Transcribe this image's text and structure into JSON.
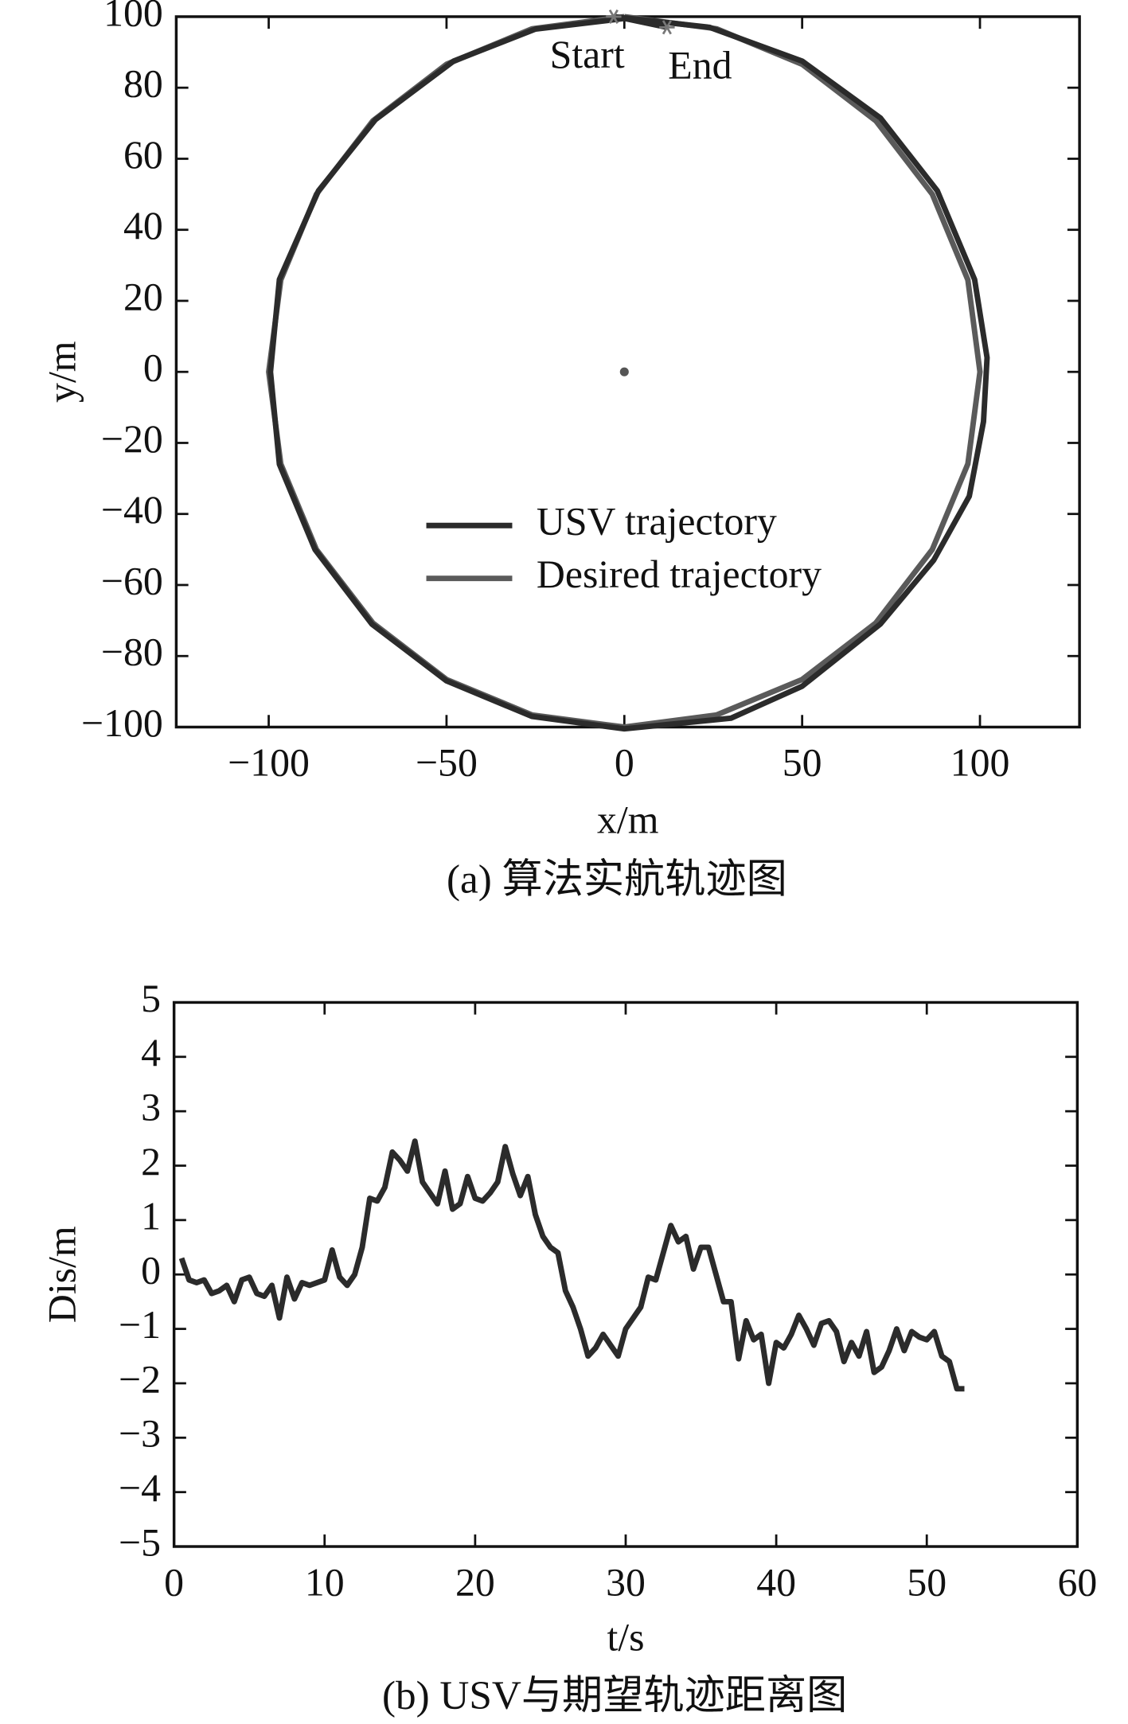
{
  "chart_data": [
    {
      "type": "line",
      "title": "(a) 算法实航轨迹图",
      "x_label": "x/m",
      "y_label": "y/m",
      "xlim": [
        -126,
        128
      ],
      "ylim": [
        -100,
        100
      ],
      "xticks": [
        {
          "value": -100,
          "label": "−100"
        },
        {
          "value": -50,
          "label": "−50"
        },
        0,
        50,
        100
      ],
      "yticks": [
        {
          "value": -100,
          "label": "−100"
        },
        {
          "value": -80,
          "label": "−80"
        },
        {
          "value": -60,
          "label": "−60"
        },
        {
          "value": -40,
          "label": "−40"
        },
        {
          "value": -20,
          "label": "−20"
        },
        0,
        20,
        40,
        60,
        80,
        100
      ],
      "series": [
        {
          "name": "USV trajectory",
          "color": "#2b2b2b",
          "x": [
            -3,
            24,
            50,
            72,
            88,
            98.5,
            102,
            101,
            97,
            87,
            72,
            50,
            30,
            0,
            -26,
            -50,
            -71,
            -87,
            -97,
            -99.5,
            -97,
            -86,
            -70,
            -48,
            -25,
            0,
            12
          ],
          "values": [
            100,
            97,
            87.5,
            71.5,
            51,
            26,
            4,
            -14,
            -35,
            -53,
            -71,
            -88.5,
            -97.5,
            -100.5,
            -97,
            -87,
            -71,
            -50,
            -26,
            0,
            26,
            51,
            71,
            87.5,
            96.5,
            99.5,
            97
          ]
        },
        {
          "name": "Desired trajectory",
          "color": "#5a5a5a",
          "x": [
            0,
            25.9,
            50,
            70.7,
            86.6,
            96.6,
            100,
            96.6,
            86.6,
            70.7,
            50,
            25.9,
            0,
            -25.9,
            -50,
            -70.7,
            -86.6,
            -96.6,
            -100,
            -96.6,
            -86.6,
            -70.7,
            -50,
            -25.9,
            0
          ],
          "values": [
            100,
            96.6,
            86.6,
            70.7,
            50,
            25.9,
            0,
            -25.9,
            -50,
            -70.7,
            -86.6,
            -96.6,
            -100,
            -96.6,
            -86.6,
            -70.7,
            -50,
            -25.9,
            0,
            25.9,
            50,
            70.7,
            86.6,
            96.6,
            100
          ]
        }
      ],
      "annotations": [
        {
          "text": "Start",
          "x": -3,
          "y": 100
        },
        {
          "text": "End",
          "x": 12,
          "y": 97
        }
      ],
      "points": [
        {
          "x": 0,
          "y": 0
        }
      ]
    },
    {
      "type": "line",
      "title": "(b) USV与期望轨迹距离图",
      "x_label": "t/s",
      "y_label": "Dis/m",
      "xlim": [
        0,
        60
      ],
      "ylim": [
        -5,
        5
      ],
      "xticks": [
        0,
        10,
        20,
        30,
        40,
        50,
        60
      ],
      "yticks": [
        {
          "value": -5,
          "label": "−5"
        },
        {
          "value": -4,
          "label": "−4"
        },
        {
          "value": -3,
          "label": "−3"
        },
        {
          "value": -2,
          "label": "−2"
        },
        {
          "value": -1,
          "label": "−1"
        },
        0,
        1,
        2,
        3,
        4,
        5
      ],
      "color": "#2b2b2b",
      "x": [
        0.5,
        1,
        1.5,
        2,
        2.5,
        3,
        3.5,
        4,
        4.5,
        5,
        5.5,
        6,
        6.5,
        7,
        7.5,
        8,
        8.5,
        9,
        10,
        10.5,
        11,
        11.5,
        12,
        12.5,
        13,
        13.5,
        14,
        14.5,
        15,
        15.5,
        16,
        16.5,
        17,
        17.5,
        18,
        18.5,
        19,
        19.5,
        20,
        20.5,
        21,
        21.5,
        22,
        22.5,
        23,
        23.5,
        24,
        24.5,
        25,
        25.5,
        26,
        26.5,
        27,
        27.5,
        28,
        28.5,
        29,
        29.5,
        30,
        30.5,
        31,
        31.5,
        32,
        32.5,
        33,
        33.5,
        34,
        34.5,
        35,
        35.5,
        36,
        36.5,
        37,
        37.5,
        38,
        38.5,
        39,
        39.5,
        40,
        40.5,
        41,
        41.5,
        42,
        42.5,
        43,
        43.5,
        44,
        44.5,
        45,
        45.5,
        46,
        46.5,
        47,
        47.5,
        48,
        48.5,
        49,
        49.5,
        50,
        50.5,
        51,
        51.5,
        52,
        52.5
      ],
      "values": [
        0.3,
        -0.1,
        -0.15,
        -0.1,
        -0.35,
        -0.3,
        -0.2,
        -0.5,
        -0.1,
        -0.05,
        -0.35,
        -0.4,
        -0.2,
        -0.8,
        -0.05,
        -0.45,
        -0.15,
        -0.2,
        -0.1,
        0.45,
        -0.05,
        -0.2,
        0,
        0.5,
        1.4,
        1.35,
        1.6,
        2.25,
        2.1,
        1.9,
        2.45,
        1.7,
        1.5,
        1.3,
        1.9,
        1.2,
        1.3,
        1.8,
        1.4,
        1.35,
        1.5,
        1.7,
        2.35,
        1.85,
        1.45,
        1.8,
        1.1,
        0.7,
        0.5,
        0.4,
        -0.3,
        -0.6,
        -1,
        -1.5,
        -1.35,
        -1.1,
        -1.3,
        -1.5,
        -1,
        -0.8,
        -0.6,
        -0.05,
        -0.1,
        0.4,
        0.9,
        0.6,
        0.7,
        0.1,
        0.5,
        0.5,
        0,
        -0.5,
        -0.5,
        -1.55,
        -0.85,
        -1.2,
        -1.1,
        -2,
        -1.25,
        -1.35,
        -1.1,
        -0.75,
        -1,
        -1.3,
        -0.9,
        -0.85,
        -1.05,
        -1.6,
        -1.25,
        -1.5,
        -1.05,
        -1.8,
        -1.7,
        -1.4,
        -1,
        -1.4,
        -1.05,
        -1.15,
        -1.2,
        -1.05,
        -1.5,
        -1.6,
        -2.1,
        -2.1
      ]
    }
  ]
}
